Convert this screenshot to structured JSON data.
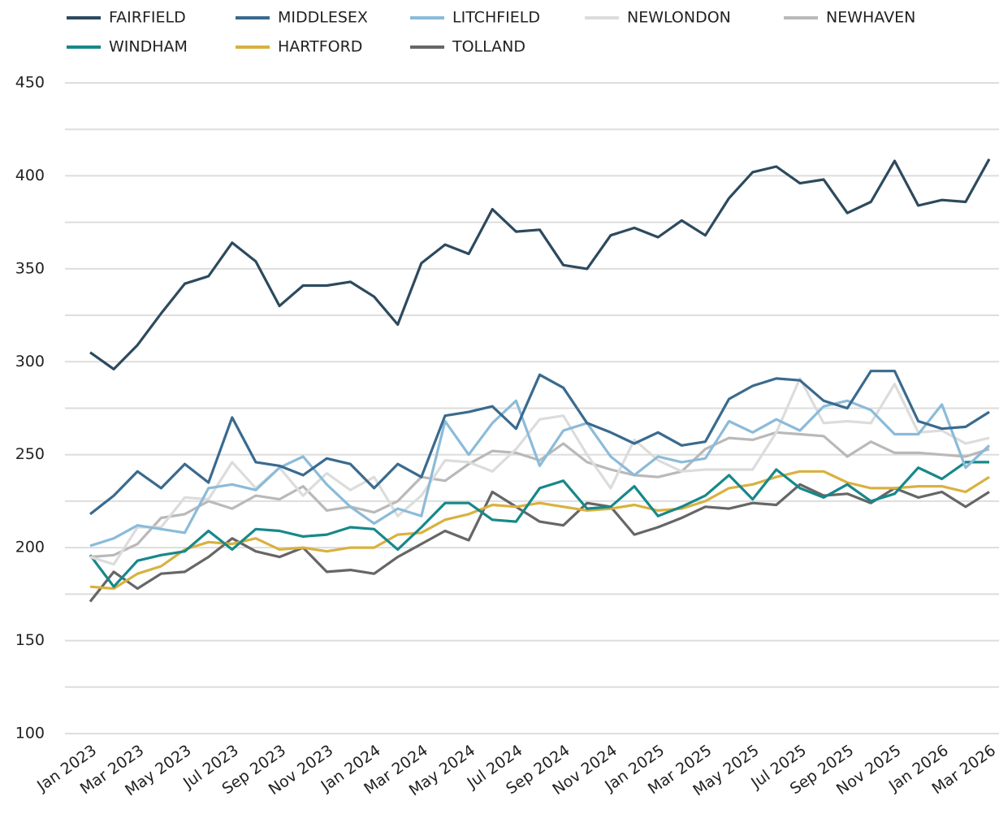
{
  "chart_data": {
    "type": "line",
    "categories": [
      "Jan 2023",
      null,
      "Mar 2023",
      null,
      "May 2023",
      null,
      "Jul 2023",
      null,
      "Sep 2023",
      null,
      "Nov 2023",
      null,
      "Jan 2024",
      null,
      "Mar 2024",
      null,
      "May 2024",
      null,
      "Jul 2024",
      null,
      "Sep 2024",
      null,
      "Nov 2024",
      null,
      "Jan 2025",
      null,
      "Mar 2025",
      null,
      "May 2025",
      null,
      "Jul 2025",
      null,
      "Sep 2025",
      null,
      "Nov 2025",
      null,
      "Jan 2026",
      null,
      "Mar 2026"
    ],
    "series": [
      {
        "name": "FAIRFIELD",
        "color": "#2d4a5e",
        "values": [
          305,
          296,
          309,
          326,
          342,
          346,
          364,
          354,
          330,
          341,
          341,
          343,
          335,
          320,
          353,
          363,
          358,
          382,
          370,
          371,
          352,
          350,
          368,
          372,
          367,
          376,
          368,
          388,
          402,
          405,
          396,
          398,
          380,
          386,
          408,
          384,
          387,
          386,
          409
        ]
      },
      {
        "name": "MIDDLESEX",
        "color": "#3a6a8e",
        "values": [
          218,
          228,
          241,
          232,
          245,
          235,
          270,
          246,
          244,
          239,
          248,
          245,
          232,
          245,
          238,
          271,
          273,
          276,
          264,
          293,
          286,
          267,
          262,
          256,
          262,
          255,
          257,
          280,
          287,
          291,
          290,
          279,
          275,
          295,
          295,
          268,
          264,
          265,
          273
        ]
      },
      {
        "name": "LITCHFIELD",
        "color": "#8bbbd9",
        "values": [
          201,
          205,
          212,
          210,
          208,
          232,
          234,
          231,
          243,
          249,
          234,
          222,
          213,
          221,
          217,
          268,
          250,
          267,
          279,
          244,
          263,
          267,
          249,
          239,
          249,
          246,
          248,
          268,
          262,
          269,
          263,
          276,
          279,
          274,
          261,
          261,
          277,
          243,
          255
        ]
      },
      {
        "name": "NEWLONDON",
        "color": "#dcdcdc",
        "values": [
          195,
          191,
          211,
          211,
          227,
          226,
          246,
          232,
          243,
          228,
          240,
          231,
          238,
          217,
          228,
          247,
          246,
          241,
          253,
          269,
          271,
          250,
          232,
          258,
          247,
          241,
          242,
          242,
          242,
          262,
          291,
          267,
          268,
          267,
          288,
          262,
          263,
          256,
          259
        ]
      },
      {
        "name": "NEWHAVEN",
        "color": "#b9b9b9",
        "values": [
          195,
          196,
          202,
          216,
          218,
          225,
          221,
          228,
          226,
          233,
          220,
          222,
          219,
          225,
          238,
          236,
          245,
          252,
          251,
          247,
          256,
          246,
          242,
          239,
          238,
          241,
          253,
          259,
          258,
          262,
          261,
          260,
          249,
          257,
          251,
          251,
          250,
          249,
          253
        ]
      },
      {
        "name": "WINDHAM",
        "color": "#17888a",
        "values": [
          196,
          179,
          193,
          196,
          198,
          209,
          199,
          210,
          209,
          206,
          207,
          211,
          210,
          199,
          211,
          224,
          224,
          215,
          214,
          232,
          236,
          221,
          222,
          233,
          217,
          222,
          228,
          239,
          226,
          242,
          232,
          227,
          234,
          225,
          229,
          243,
          237,
          246,
          246
        ]
      },
      {
        "name": "HARTFORD",
        "color": "#d9b13f",
        "values": [
          179,
          178,
          186,
          190,
          199,
          203,
          202,
          205,
          199,
          200,
          198,
          200,
          200,
          207,
          208,
          215,
          218,
          223,
          222,
          224,
          222,
          220,
          221,
          223,
          220,
          221,
          225,
          232,
          234,
          238,
          241,
          241,
          235,
          232,
          232,
          233,
          233,
          230,
          238
        ]
      },
      {
        "name": "TOLLAND",
        "color": "#666666",
        "values": [
          171,
          187,
          178,
          186,
          187,
          195,
          205,
          198,
          195,
          200,
          187,
          188,
          186,
          195,
          202,
          209,
          204,
          230,
          222,
          214,
          212,
          224,
          222,
          207,
          211,
          216,
          222,
          221,
          224,
          223,
          234,
          228,
          229,
          224,
          232,
          227,
          230,
          222,
          230
        ]
      }
    ],
    "ylim": [
      100,
      450
    ],
    "yticks": [
      100,
      150,
      200,
      250,
      300,
      350,
      400,
      450
    ],
    "grid_lines": [
      100,
      125,
      150,
      175,
      200,
      225,
      250,
      275,
      300,
      325,
      350,
      375,
      400,
      425,
      450
    ],
    "grid": true
  }
}
